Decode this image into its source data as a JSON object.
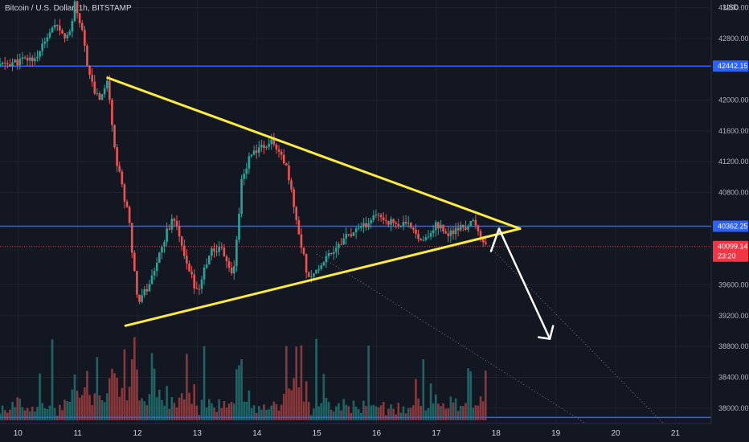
{
  "header": {
    "symbol_title": "Bitcoin / U.S. Dollar, 1h, BITSTAMP",
    "currency": "USD"
  },
  "colors": {
    "background": "#131722",
    "up": "#26a69a",
    "down": "#ef5350",
    "level_line": "#2962ff",
    "triangle": "#ffeb3b",
    "arrow": "#ffffff",
    "guide": "#787b86",
    "current": "#f23645"
  },
  "chart_data": {
    "type": "candlestick",
    "title": "Bitcoin / U.S. Dollar, 1h, BITSTAMP",
    "ylim": [
      37800,
      43300
    ],
    "x_range": [
      9.7,
      21.6
    ],
    "y_ticks": [
      "43200.00",
      "42800.00",
      "42000.00",
      "41600.00",
      "41200.00",
      "40800.00",
      "39600.00",
      "39200.00",
      "38800.00",
      "38400.00",
      "38000.00"
    ],
    "x_ticks": [
      "10",
      "11",
      "12",
      "13",
      "14",
      "15",
      "16",
      "17",
      "18",
      "19",
      "20",
      "21"
    ],
    "horizontal_levels": [
      {
        "value": 42442.15,
        "label": "42442.15"
      },
      {
        "value": 40362.25,
        "label": "40362.25"
      },
      {
        "value": 37880,
        "label": ""
      }
    ],
    "current_price": {
      "value": 40099.14,
      "label": "40099.14",
      "countdown": "23:20"
    },
    "triangle": {
      "upper": [
        [
          11.5,
          42290
        ],
        [
          18.4,
          40330
        ]
      ],
      "lower": [
        [
          11.8,
          39070
        ],
        [
          18.4,
          40330
        ]
      ]
    },
    "dotted_guides": [
      [
        [
          15.0,
          40000
        ],
        [
          19.5,
          37800
        ]
      ],
      [
        [
          17.8,
          40170
        ],
        [
          20.8,
          37800
        ]
      ]
    ],
    "projection_arrow": [
      [
        18.05,
        40330
      ],
      [
        18.9,
        38900
      ]
    ],
    "price_path": [
      [
        9.7,
        42450
      ],
      [
        10.3,
        42550
      ],
      [
        10.6,
        42950
      ],
      [
        10.85,
        42800
      ],
      [
        10.95,
        43250
      ],
      [
        11.05,
        43000
      ],
      [
        11.2,
        42300
      ],
      [
        11.35,
        42000
      ],
      [
        11.5,
        42250
      ],
      [
        11.65,
        41200
      ],
      [
        11.85,
        40500
      ],
      [
        12.0,
        39400
      ],
      [
        12.2,
        39600
      ],
      [
        12.4,
        40100
      ],
      [
        12.6,
        40500
      ],
      [
        12.8,
        39900
      ],
      [
        13.0,
        39500
      ],
      [
        13.2,
        40000
      ],
      [
        13.4,
        40100
      ],
      [
        13.6,
        39700
      ],
      [
        13.75,
        41000
      ],
      [
        13.9,
        41300
      ],
      [
        14.1,
        41400
      ],
      [
        14.3,
        41450
      ],
      [
        14.5,
        41100
      ],
      [
        14.7,
        40300
      ],
      [
        14.85,
        39700
      ],
      [
        15.0,
        39800
      ],
      [
        15.2,
        40000
      ],
      [
        15.45,
        40200
      ],
      [
        15.7,
        40300
      ],
      [
        16.0,
        40500
      ],
      [
        16.3,
        40400
      ],
      [
        16.6,
        40350
      ],
      [
        16.8,
        40150
      ],
      [
        17.0,
        40400
      ],
      [
        17.2,
        40250
      ],
      [
        17.45,
        40350
      ],
      [
        17.65,
        40400
      ],
      [
        17.8,
        40150
      ],
      [
        17.85,
        40099
      ]
    ]
  }
}
